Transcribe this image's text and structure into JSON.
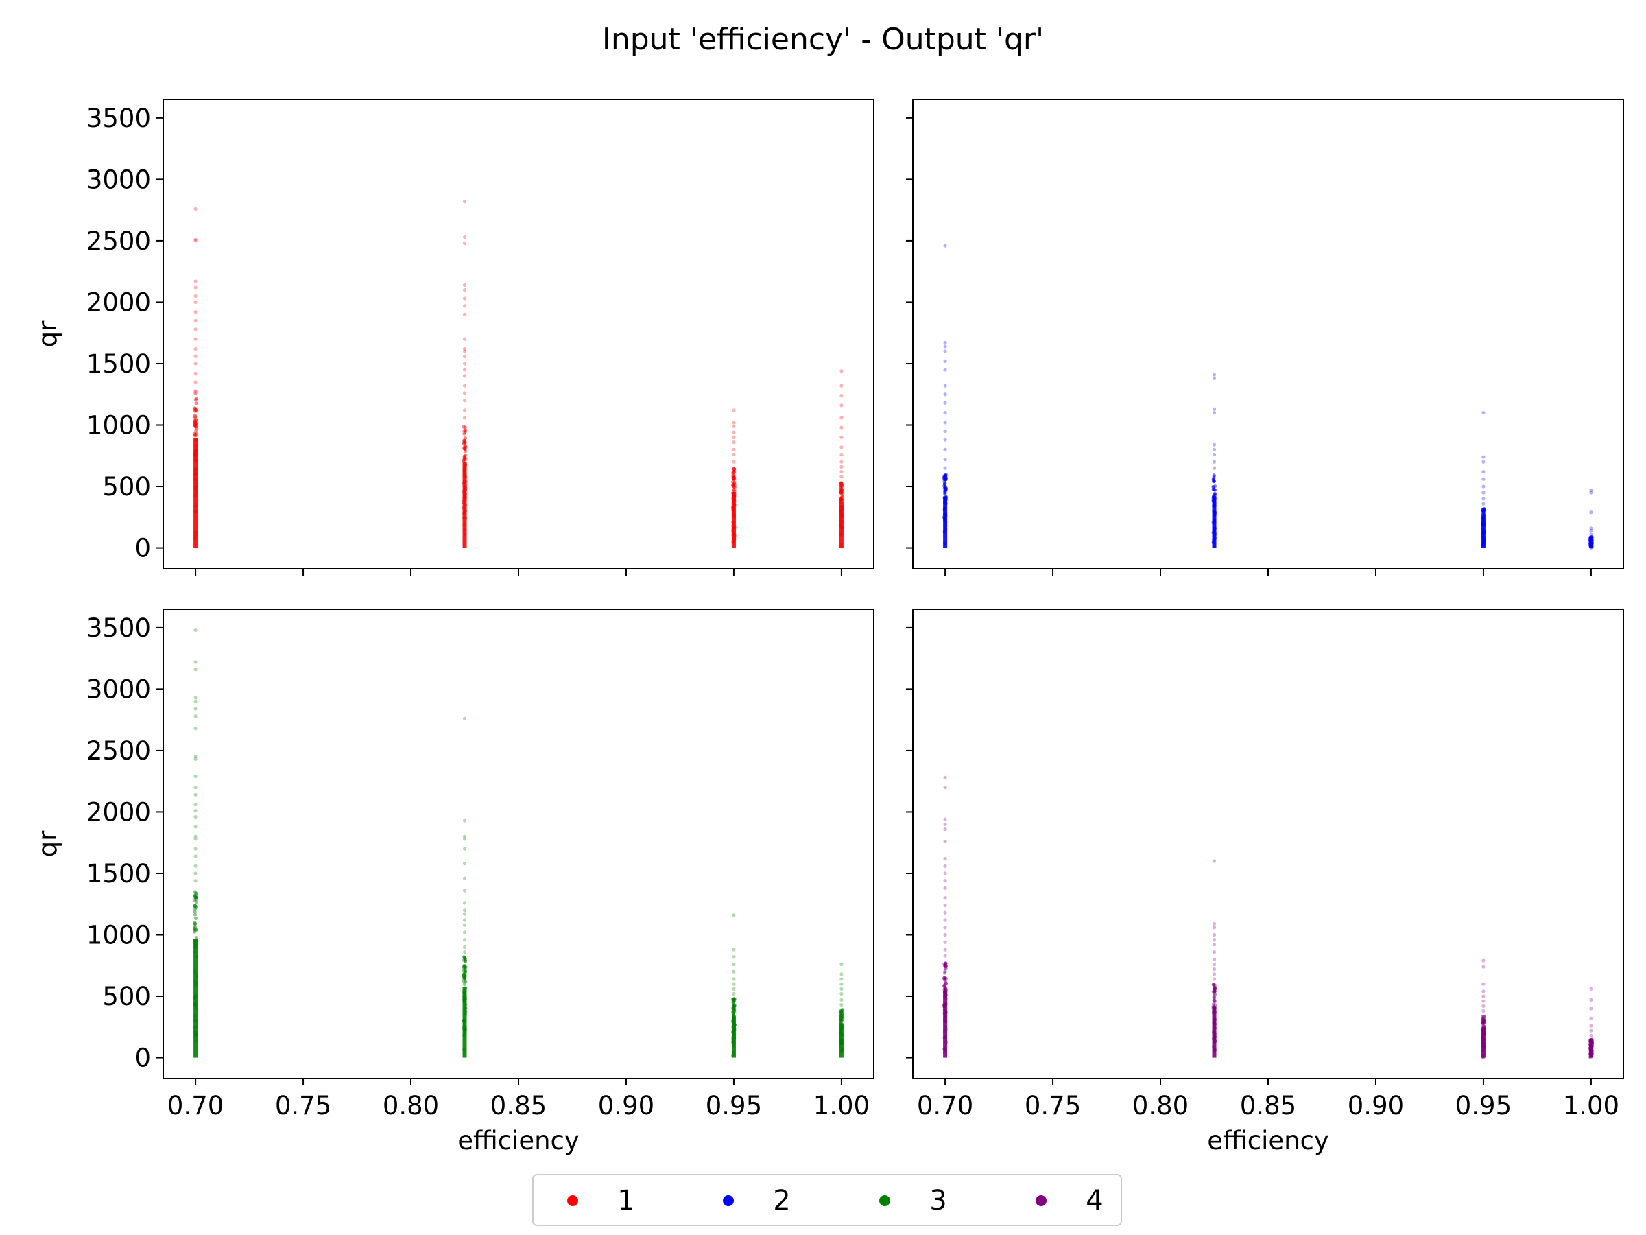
{
  "chart_data": {
    "type": "scatter",
    "title": "Input 'efficiency' - Output 'qr'",
    "xlabel": "efficiency",
    "ylabel": "qr",
    "xlim": [
      0.685,
      1.015
    ],
    "ylim": [
      -170,
      3650
    ],
    "xticks": [
      "0.70",
      "0.75",
      "0.80",
      "0.85",
      "0.90",
      "0.95",
      "1.00"
    ],
    "yticks": [
      "0",
      "500",
      "1000",
      "1500",
      "2000",
      "2500",
      "3000",
      "3500"
    ],
    "grid": false,
    "legend_position": "bottom-center",
    "x_levels": [
      0.7,
      0.825,
      0.95,
      1.0
    ],
    "series": [
      {
        "name": "1",
        "color": "#ff0000",
        "columns": [
          {
            "x": 0.7,
            "dense_max": 1280,
            "outliers": [
              1350,
              1420,
              1500,
              1560,
              1620,
              1700,
              1780,
              1850,
              1920,
              2000,
              2050,
              2120,
              2170,
              2500,
              2510,
              2760
            ]
          },
          {
            "x": 0.825,
            "dense_max": 1000,
            "outliers": [
              1060,
              1120,
              1200,
              1260,
              1320,
              1400,
              1450,
              1500,
              1560,
              1600,
              1620,
              1700,
              1900,
              1970,
              2030,
              2100,
              2140,
              2480,
              2530,
              2820
            ]
          },
          {
            "x": 0.95,
            "dense_max": 650,
            "outliers": [
              700,
              760,
              800,
              860,
              900,
              940,
              990,
              1020,
              1120
            ]
          },
          {
            "x": 1.0,
            "dense_max": 540,
            "outliers": [
              580,
              620,
              660,
              700,
              760,
              820,
              900,
              980,
              1060,
              1160,
              1240,
              1320,
              1440
            ]
          }
        ]
      },
      {
        "name": "2",
        "color": "#0000ff",
        "columns": [
          {
            "x": 0.7,
            "dense_max": 600,
            "outliers": [
              650,
              720,
              800,
              880,
              950,
              1020,
              1100,
              1180,
              1250,
              1320,
              1450,
              1520,
              1600,
              1640,
              1670,
              2460
            ]
          },
          {
            "x": 0.825,
            "dense_max": 600,
            "outliers": [
              650,
              700,
              760,
              800,
              840,
              1100,
              1130,
              1380,
              1410
            ]
          },
          {
            "x": 0.95,
            "dense_max": 320,
            "outliers": [
              360,
              400,
              450,
              500,
              560,
              620,
              700,
              740,
              1100
            ]
          },
          {
            "x": 1.0,
            "dense_max": 90,
            "outliers": [
              110,
              140,
              160,
              290,
              450,
              470
            ]
          }
        ]
      },
      {
        "name": "3",
        "color": "#008000",
        "columns": [
          {
            "x": 0.7,
            "dense_max": 1380,
            "outliers": [
              1440,
              1500,
              1560,
              1640,
              1700,
              1780,
              1800,
              1880,
              1960,
              2010,
              2060,
              2140,
              2200,
              2290,
              2430,
              2450,
              2680,
              2780,
              2840,
              2900,
              2930,
              3160,
              3220,
              3480
            ]
          },
          {
            "x": 0.825,
            "dense_max": 820,
            "outliers": [
              860,
              900,
              960,
              1020,
              1080,
              1120,
              1170,
              1200,
              1260,
              1360,
              1460,
              1580,
              1700,
              1780,
              1800,
              1930,
              2760
            ]
          },
          {
            "x": 0.95,
            "dense_max": 480,
            "outliers": [
              520,
              560,
              600,
              640,
              700,
              760,
              820,
              880,
              1160
            ]
          },
          {
            "x": 1.0,
            "dense_max": 400,
            "outliers": [
              430,
              470,
              520,
              560,
              600,
              640,
              680,
              760
            ]
          }
        ]
      },
      {
        "name": "4",
        "color": "#800080",
        "columns": [
          {
            "x": 0.7,
            "dense_max": 780,
            "outliers": [
              830,
              880,
              940,
              1000,
              1060,
              1120,
              1180,
              1240,
              1300,
              1380,
              1440,
              1500,
              1560,
              1620,
              1760,
              1860,
              1900,
              1940,
              2200,
              2280
            ]
          },
          {
            "x": 0.825,
            "dense_max": 600,
            "outliers": [
              640,
              680,
              720,
              760,
              800,
              860,
              920,
              960,
              1000,
              1060,
              1090,
              1600
            ]
          },
          {
            "x": 0.95,
            "dense_max": 340,
            "outliers": [
              380,
              420,
              460,
              500,
              540,
              600,
              740,
              790
            ]
          },
          {
            "x": 1.0,
            "dense_max": 150,
            "outliers": [
              180,
              220,
              260,
              320,
              400,
              470,
              560
            ]
          }
        ]
      }
    ]
  }
}
